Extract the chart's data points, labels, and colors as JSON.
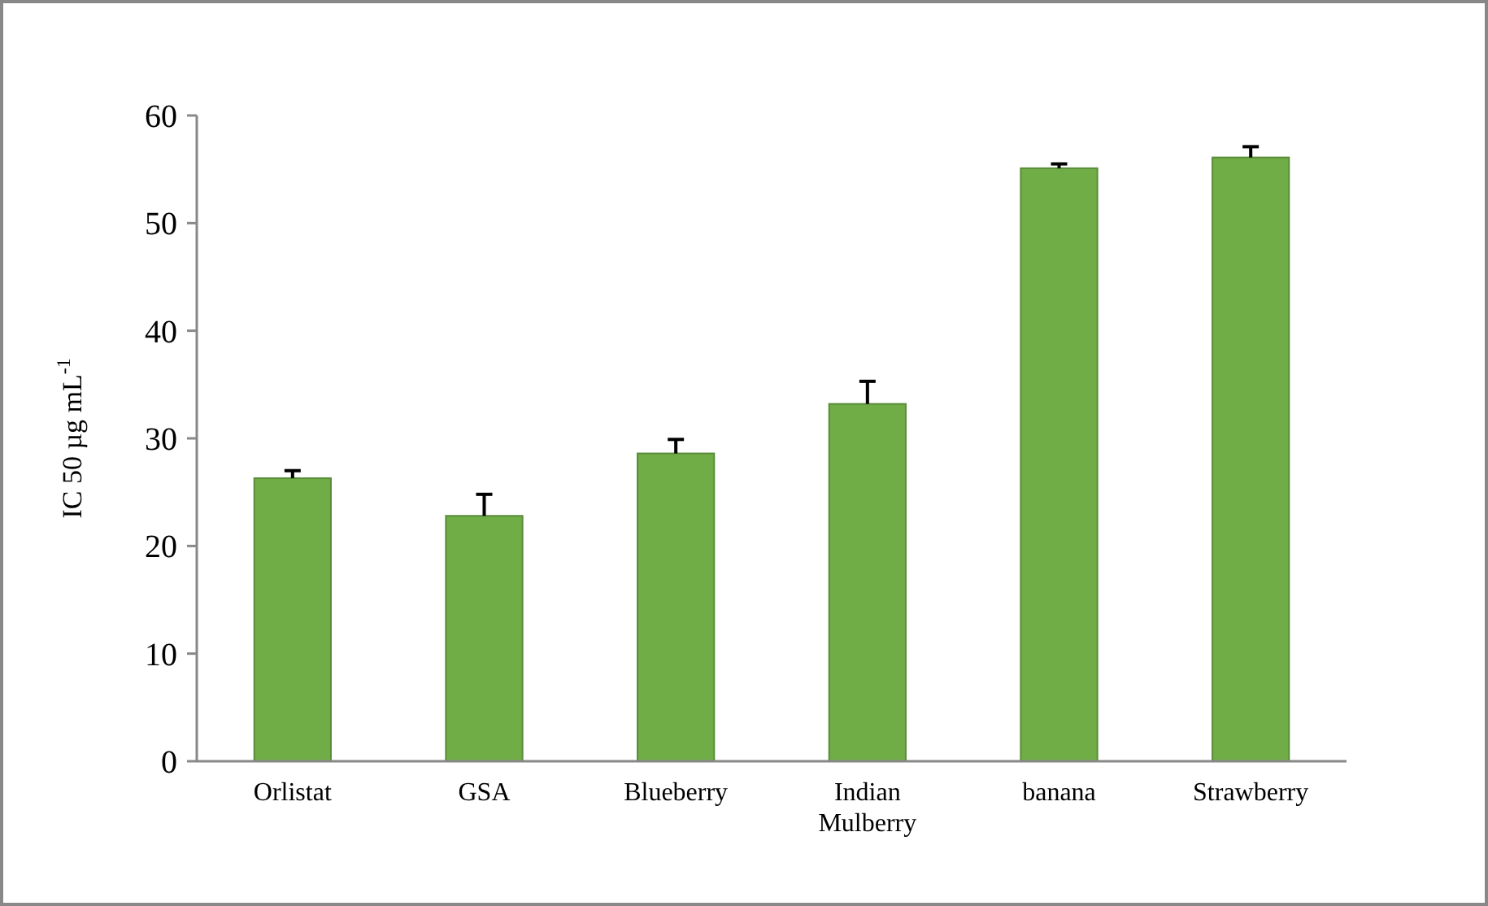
{
  "chart_data": {
    "type": "bar",
    "ylabel": "IC 50 µg mL$^{-1}$",
    "categories": [
      "Orlistat",
      "GSA",
      "Blueberry",
      "Indian Mulberry",
      "banana",
      "Strawberry"
    ],
    "values": [
      26.3,
      22.8,
      28.6,
      33.2,
      55.1,
      56.1
    ],
    "errors": [
      0.7,
      2.0,
      1.3,
      2.1,
      0.4,
      1.0
    ],
    "color": "#70ad47",
    "ylim": [
      0,
      60
    ],
    "yticks": [
      0,
      10,
      20,
      30,
      40,
      50,
      60
    ],
    "grid": false
  }
}
